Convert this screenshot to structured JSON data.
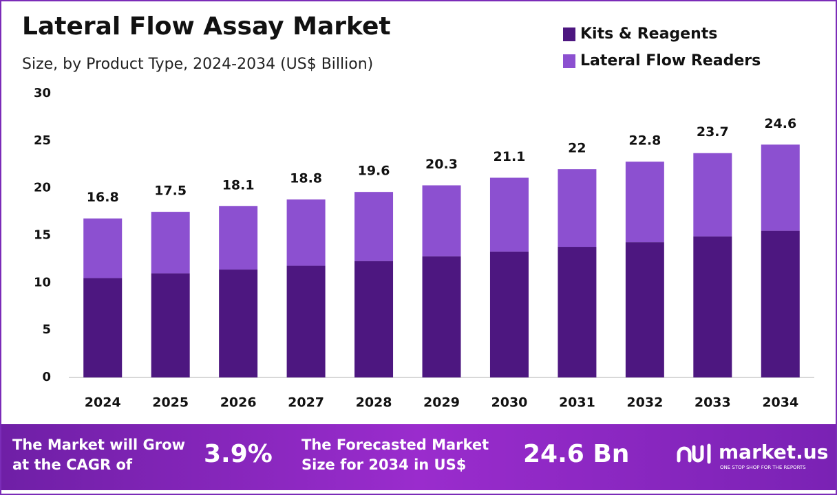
{
  "chart_data": {
    "type": "stacked_bar",
    "title": "Lateral Flow Assay Market",
    "subtitle": "Size, by Product Type, 2024-2034 (US$ Billion)",
    "categories": [
      "2024",
      "2025",
      "2026",
      "2027",
      "2028",
      "2029",
      "2030",
      "2031",
      "2032",
      "2033",
      "2034"
    ],
    "series": [
      {
        "name": "Kits & Reagents",
        "color": "#4d1780",
        "values": [
          10.5,
          11.0,
          11.4,
          11.8,
          12.3,
          12.8,
          13.3,
          13.8,
          14.3,
          14.9,
          15.5
        ]
      },
      {
        "name": "Lateral Flow Readers",
        "color": "#8c50d0",
        "values": [
          6.3,
          6.5,
          6.7,
          7.0,
          7.3,
          7.5,
          7.8,
          8.2,
          8.5,
          8.8,
          9.1
        ]
      }
    ],
    "totals": [
      16.8,
      17.5,
      18.1,
      18.8,
      19.6,
      20.3,
      21.1,
      22.0,
      22.8,
      23.7,
      24.6
    ],
    "ylim": [
      0,
      30
    ],
    "yticks": [
      0,
      5,
      10,
      15,
      20,
      25,
      30
    ],
    "grid": false,
    "legend": "top-right"
  },
  "footer": {
    "cagr_text": [
      "The Market will Grow",
      "at the CAGR of"
    ],
    "cagr_value": "3.9%",
    "forecast_text": [
      "The Forecasted Market",
      "Size for 2034 in US$"
    ],
    "forecast_value": "24.6 Bn",
    "logo": "market.us",
    "tagline": "ONE STOP SHOP FOR THE REPORTS"
  }
}
